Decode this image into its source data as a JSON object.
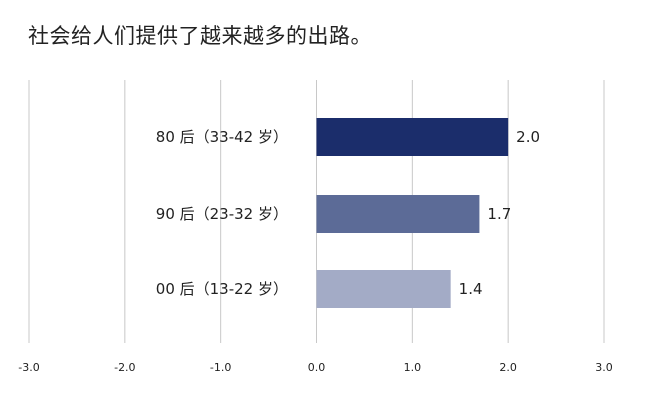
{
  "chart_data": {
    "type": "bar",
    "orientation": "horizontal",
    "title": "社会给人们提供了越来越多的出路。",
    "categories": [
      "80 后（33-42 岁）",
      "90 后（23-32 岁）",
      "00 后（13-22 岁）"
    ],
    "values": [
      2.0,
      1.7,
      1.4
    ],
    "data_labels": [
      "2.0",
      "1.7",
      "1.4"
    ],
    "xlim": [
      -3.0,
      3.0
    ],
    "xticks": [
      -3.0,
      -2.0,
      -1.0,
      0.0,
      1.0,
      2.0,
      3.0
    ],
    "xtick_labels": [
      "-3.0",
      "-2.0",
      "-1.0",
      "0.0",
      "1.0",
      "2.0",
      "3.0"
    ],
    "grid": "vertical",
    "legend": "none",
    "colors": [
      "#1b2d6b",
      "#5c6b97",
      "#a3abc6"
    ],
    "grid_color": "#c8c8c8"
  }
}
